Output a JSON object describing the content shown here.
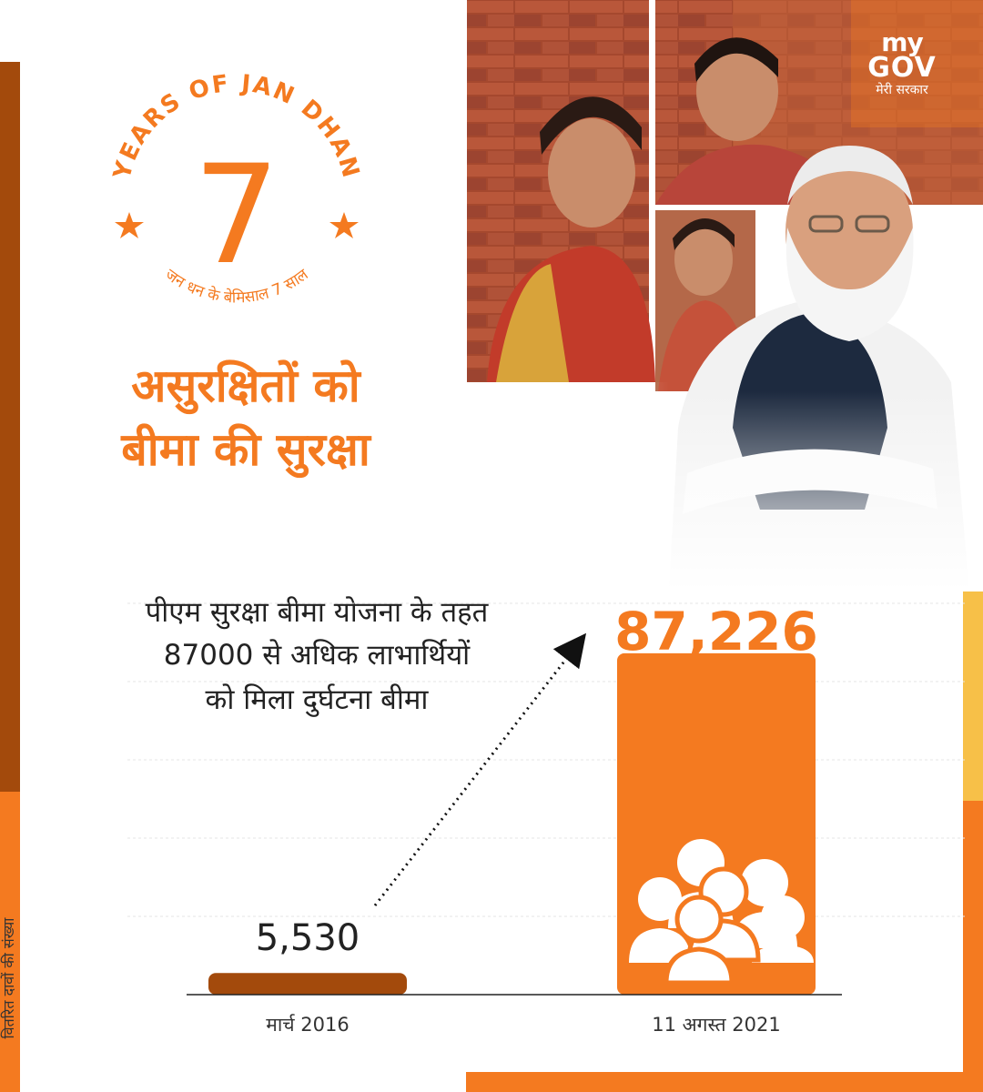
{
  "logo": {
    "brand_top": "my",
    "brand_bottom": "GOV",
    "tagline": "मेरी सरकार"
  },
  "badge": {
    "arc_text": "YEARS OF JAN DHAN",
    "number": "7",
    "sub_text": "जन धन के बेमिसाल 7 साल"
  },
  "heading": {
    "line1": "असुरक्षितों को",
    "line2": "बीमा की सुरक्षा"
  },
  "description": {
    "line1": "पीएम सुरक्षा बीमा योजना के तहत",
    "line2": "87000 से अधिक लाभार्थियों",
    "line3": "को मिला दुर्घटना बीमा"
  },
  "colors": {
    "orange": "#f47a20",
    "brown": "#a34a0c",
    "yellow": "#f7c048"
  },
  "icons": {
    "group": "people-group-icon",
    "star": "star-icon"
  },
  "chart_data": {
    "type": "bar",
    "ylabel": "वितरित दावों की संख्या",
    "categories": [
      "मार्च 2016",
      "11 अगस्त 2021"
    ],
    "values": [
      5530,
      87226
    ],
    "value_labels": [
      "5,530",
      "87,226"
    ],
    "ylim": [
      0,
      100000
    ],
    "grid": true,
    "bar_colors": [
      "#a34a0c",
      "#f47a20"
    ]
  }
}
